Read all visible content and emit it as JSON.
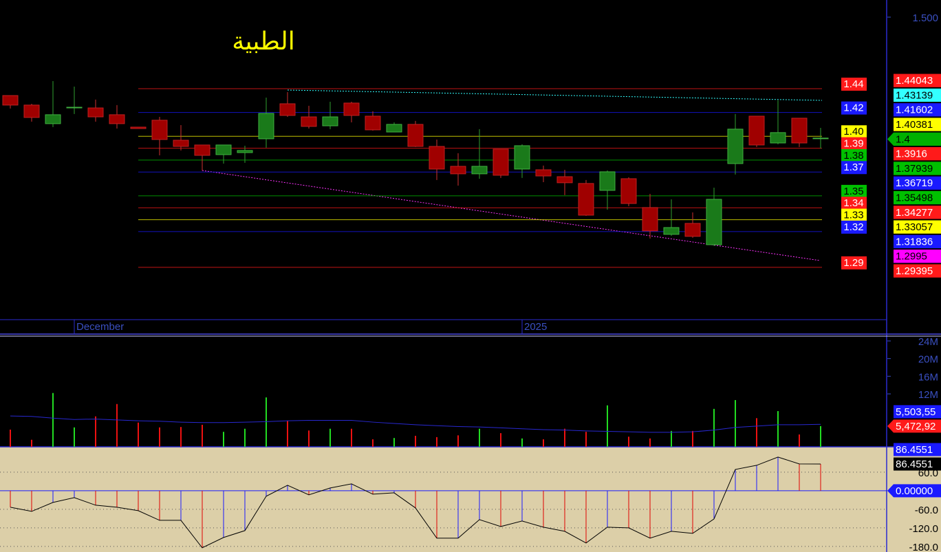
{
  "chart_data": [
    {
      "type": "candlestick",
      "title": "الطبية",
      "categories": [
        null,
        null,
        null,
        "December",
        null,
        null,
        null,
        null,
        null,
        null,
        null,
        null,
        null,
        null,
        null,
        null,
        null,
        null,
        null,
        null,
        null,
        null,
        null,
        null,
        "2025",
        null,
        null,
        null,
        null,
        null,
        null,
        null,
        null,
        null,
        null,
        null,
        null,
        null,
        null
      ],
      "open": [
        1.4342,
        1.4262,
        1.4106,
        1.4244,
        1.4238,
        1.4181,
        1.4077,
        1.4135,
        1.3967,
        1.3927,
        1.3846,
        1.3863,
        1.3979,
        1.4273,
        1.4163,
        1.4088,
        1.4279,
        1.4169,
        1.4036,
        1.41,
        1.3915,
        1.3748,
        1.3685,
        1.3892,
        1.3725,
        1.3719,
        1.3661,
        1.3604,
        1.3546,
        1.3644,
        1.3402,
        1.3177,
        1.3269,
        1.309,
        1.3771,
        1.4169,
        1.3944,
        1.4152,
        1.3985
      ],
      "high": [
        1.4342,
        1.4273,
        1.4463,
        1.4417,
        1.4308,
        1.4262,
        1.4077,
        1.4163,
        1.4094,
        1.3927,
        1.3927,
        1.3921,
        1.4325,
        1.4371,
        1.4256,
        1.429,
        1.429,
        1.421,
        1.4117,
        1.4129,
        1.3973,
        1.3858,
        1.406,
        1.3892,
        1.3933,
        1.3754,
        1.3719,
        1.3633,
        1.3713,
        1.3656,
        1.3517,
        1.3471,
        1.3361,
        1.3569,
        1.4187,
        1.4169,
        1.4302,
        1.4152,
        1.4071
      ],
      "low": [
        1.4233,
        1.4123,
        1.4077,
        1.4187,
        1.4123,
        1.4065,
        1.4065,
        1.384,
        1.3881,
        1.3713,
        1.3771,
        1.3777,
        1.3904,
        1.4163,
        1.4065,
        1.406,
        1.4117,
        1.4048,
        1.4036,
        1.391,
        1.3633,
        1.3586,
        1.3644,
        1.365,
        1.365,
        1.3615,
        1.3506,
        1.3332,
        1.3384,
        1.3413,
        1.3142,
        1.3165,
        1.3148,
        1.3079,
        1.3679,
        1.391,
        1.3933,
        1.391,
        1.3898
      ],
      "close": [
        1.4262,
        1.4158,
        1.4181,
        1.4244,
        1.4163,
        1.4106,
        1.4065,
        1.3973,
        1.3915,
        1.384,
        1.3927,
        1.3881,
        1.4192,
        1.4175,
        1.4083,
        1.4163,
        1.4175,
        1.4054,
        1.41,
        1.3915,
        1.3725,
        1.3685,
        1.3748,
        1.3673,
        1.3921,
        1.3667,
        1.361,
        1.3338,
        1.3702,
        1.3436,
        1.3206,
        1.3234,
        1.316,
        1.3471,
        1.406,
        1.3927,
        1.4031,
        1.3944,
        1.3985
      ],
      "up_color": "#1a7a1a",
      "down_color": "#a00000",
      "ylim": [
        1.2334,
        1.5144
      ],
      "yticks": [
        {
          "value": 1.5,
          "label": "1.500"
        }
      ],
      "levels": [
        {
          "value": 1.44,
          "color": "#ff1a1a"
        },
        {
          "value": 1.42,
          "color": "#1a1aff"
        },
        {
          "value": 1.4,
          "label": "1.40",
          "color": "#ffff00"
        },
        {
          "value": 1.39,
          "color": "#ff1a1a"
        },
        {
          "value": 1.38,
          "color": "#00c000"
        },
        {
          "value": 1.37,
          "color": "#1a1aff"
        },
        {
          "value": 1.35,
          "color": "#00c000"
        },
        {
          "value": 1.34,
          "color": "#ff1a1a"
        },
        {
          "value": 1.33,
          "color": "#ffff00"
        },
        {
          "value": 1.32,
          "color": "#1a1aff"
        },
        {
          "value": 1.29,
          "color": "#ff1a1a"
        }
      ],
      "tags": [
        {
          "value": 1.44043,
          "color": "#ff1a1a"
        },
        {
          "value": 1.43139,
          "color": "#33ffff"
        },
        {
          "value": 1.41602,
          "color": "#1a1aff"
        },
        {
          "value": 1.40381,
          "color": "#ffff00"
        },
        {
          "value": 1.4,
          "color": "#00b000",
          "style": "arrow"
        },
        {
          "value": 1.3916,
          "color": "#ff1a1a"
        },
        {
          "value": 1.37939,
          "color": "#00c000"
        },
        {
          "value": 1.36719,
          "color": "#1a1aff"
        },
        {
          "value": 1.35498,
          "color": "#00c000"
        },
        {
          "value": 1.34277,
          "color": "#ff1a1a"
        },
        {
          "value": 1.33057,
          "color": "#ffff00"
        },
        {
          "value": 1.31836,
          "color": "#1a1aff"
        },
        {
          "value": 1.2995,
          "color": "#ff00ff"
        },
        {
          "value": 1.29395,
          "color": "#ff1a1a"
        }
      ]
    },
    {
      "type": "bar",
      "values": [
        3900000,
        1600000,
        12200000,
        4400000,
        6900000,
        9700000,
        5500000,
        4400000,
        4500000,
        5000000,
        3400000,
        4100000,
        11200000,
        5900000,
        3700000,
        4100000,
        4100000,
        1700000,
        2000000,
        2500000,
        2200000,
        2600000,
        4100000,
        3100000,
        1900000,
        1700000,
        4100000,
        3400000,
        9400000,
        2300000,
        1900000,
        3600000,
        3600000,
        8600000,
        10600000,
        6500000,
        8100000,
        2800000,
        4700000
      ],
      "average": [
        7000000,
        6900000,
        6500000,
        6200000,
        6300000,
        6100000,
        5900000,
        5800000,
        5600000,
        5500000,
        5500000,
        5600000,
        5700000,
        5900000,
        6000000,
        6000000,
        6000000,
        5600000,
        5300000,
        5000000,
        4800000,
        4600000,
        4500000,
        4300000,
        4100000,
        3900000,
        3800000,
        3600000,
        3500000,
        3400000,
        3300000,
        3300000,
        3400000,
        3800000,
        4400000,
        4700000,
        5000000,
        5000000,
        5100000
      ],
      "average_color": "#2828d0",
      "ylim": [
        0,
        25400000
      ],
      "yticks": [
        {
          "value": 24000000,
          "label": "24M"
        },
        {
          "value": 20000000,
          "label": "20M"
        },
        {
          "value": 16000000,
          "label": "16M"
        },
        {
          "value": 12000000,
          "label": "12M"
        }
      ],
      "tags": [
        {
          "value": 5503550,
          "label": "5,503,55",
          "color": "#1a1aff"
        },
        {
          "value": 5472920,
          "label": "5,472,92",
          "color": "#ff1a1a",
          "style": "arrow"
        }
      ]
    },
    {
      "type": "oscillator",
      "values": [
        -53.3,
        -66.7,
        -37.8,
        -22.2,
        -46.7,
        -53.3,
        -64.4,
        -95.6,
        -95.6,
        -184.4,
        -151.1,
        -128.9,
        -17.8,
        17.8,
        -13.3,
        8.9,
        22.2,
        -11.1,
        -6.7,
        -55.6,
        -153.3,
        -153.3,
        -93.3,
        -115.6,
        -97.8,
        -117.8,
        -131.1,
        -168.9,
        -117.8,
        -120.0,
        -153.3,
        -131.1,
        -137.8,
        -91.1,
        68.9,
        82.2,
        108.9,
        86.7,
        86.4551
      ],
      "rise_color": "#1a1aff",
      "fall_color": "#e00000",
      "line_color": "#000000",
      "background": "#dccfa8",
      "ylim": [
        -198,
        142
      ],
      "grid": true,
      "yticks": [
        {
          "value": 60,
          "label": "60.0"
        },
        {
          "value": -60,
          "label": "-60.0"
        },
        {
          "value": -120,
          "label": "-120.0"
        },
        {
          "value": -180,
          "label": "-180.0"
        }
      ],
      "tags": [
        {
          "value": 86.4551,
          "color": "#1a1aff"
        },
        {
          "value": 86.4551,
          "color": "#000000"
        },
        {
          "value": 0,
          "label": "0.00000",
          "color": "#1a1aff",
          "style": "arrow"
        }
      ]
    }
  ]
}
